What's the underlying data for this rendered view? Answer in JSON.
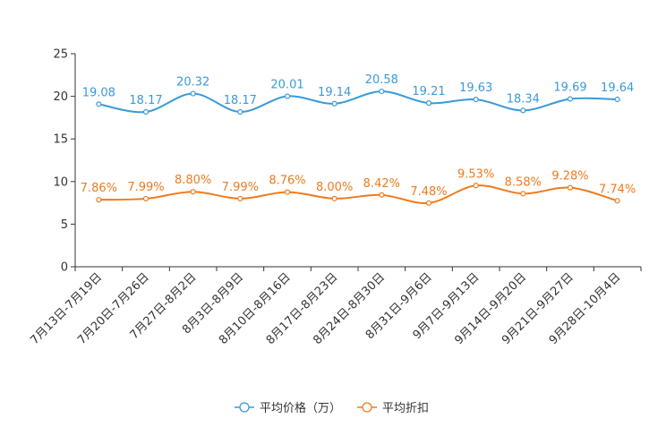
{
  "chart_data": {
    "type": "line",
    "title": "",
    "xlabel": "",
    "ylabel": "",
    "ylim": [
      0,
      25
    ],
    "yticks": [
      0,
      5,
      10,
      15,
      20,
      25
    ],
    "grid": false,
    "legend_position": "bottom-center",
    "smooth": true,
    "categories": [
      "7月13日-7月19日",
      "7月20日-7月26日",
      "7月27日-8月2日",
      "8月3日-8月9日",
      "8月10日-8月16日",
      "8月17日-8月23日",
      "8月24日-8月30日",
      "8月31日-9月6日",
      "9月7日-9月13日",
      "9月14日-9月20日",
      "9月21日-9月27日",
      "9月28日-10月4日"
    ],
    "series": [
      {
        "name": "平均价格（万）",
        "color": "#3a9ad9",
        "values": [
          19.08,
          18.17,
          20.32,
          18.17,
          20.01,
          19.14,
          20.58,
          19.21,
          19.63,
          18.34,
          19.69,
          19.64
        ],
        "labels": [
          "19.08",
          "18.17",
          "20.32",
          "18.17",
          "20.01",
          "19.14",
          "20.58",
          "19.21",
          "19.63",
          "18.34",
          "19.69",
          "19.64"
        ]
      },
      {
        "name": "平均折扣",
        "color": "#f07a1d",
        "values": [
          7.86,
          7.99,
          8.8,
          7.99,
          8.76,
          8.0,
          8.42,
          7.48,
          9.53,
          8.58,
          9.28,
          7.74
        ],
        "labels": [
          "7.86%",
          "7.99%",
          "8.80%",
          "7.99%",
          "8.76%",
          "8.00%",
          "8.42%",
          "7.48%",
          "9.53%",
          "8.58%",
          "9.28%",
          "7.74%"
        ]
      }
    ]
  }
}
